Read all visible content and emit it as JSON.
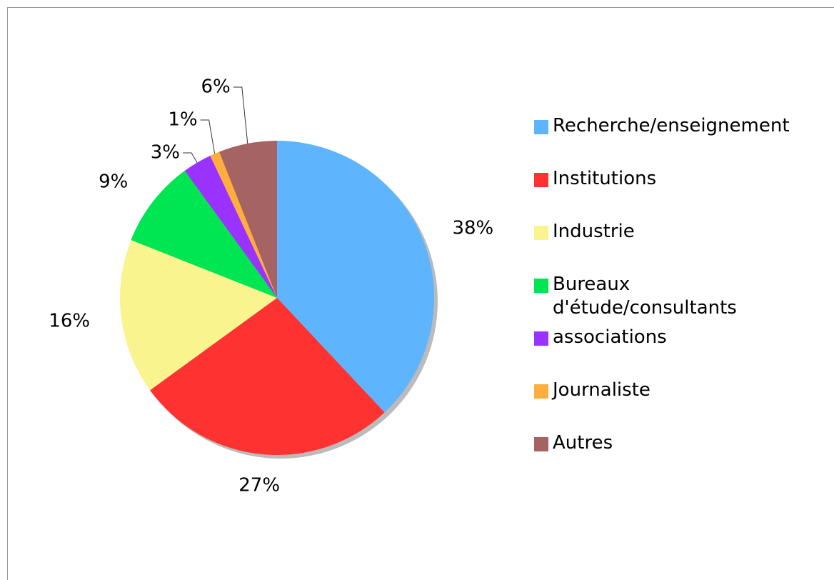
{
  "chart_data": {
    "type": "pie",
    "categories": [
      "Recherche/enseignement",
      "Institutions",
      "Industrie",
      "Bureaux d'étude/consultants",
      "associations",
      "Journaliste",
      "Autres"
    ],
    "values": [
      38,
      27,
      16,
      9,
      3,
      1,
      6
    ],
    "value_labels": [
      "38%",
      "27%",
      "16%",
      "9%",
      "3%",
      "1%",
      "6%"
    ],
    "colors": [
      "#5eb4fd",
      "#ff3232",
      "#f9f48e",
      "#00e552",
      "#9a33ff",
      "#ffad3c",
      "#a56363"
    ],
    "legend": "right"
  }
}
